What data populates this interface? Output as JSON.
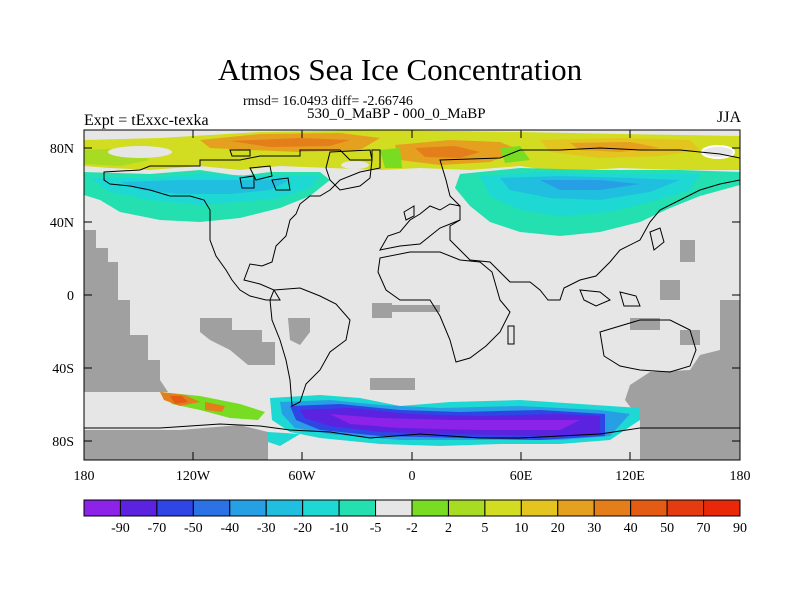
{
  "title": "Atmos Sea Ice Concentration",
  "stats": "rmsd= 16.0493 diff= -2.66746",
  "subtitle": "530_0_MaBP - 000_0_MaBP",
  "experiment": "Expt = tExxc-texka",
  "season": "JJA",
  "map": {
    "lat_labels": [
      "80N",
      "40N",
      "0",
      "40S",
      "80S"
    ],
    "lon_labels": [
      "180",
      "120W",
      "60W",
      "0",
      "60E",
      "120E",
      "180"
    ],
    "land_color": "#e6e6e6",
    "missing_color": "#a0a0a0"
  },
  "colorbar": {
    "labels": [
      "-90",
      "-70",
      "-50",
      "-40",
      "-30",
      "-20",
      "-10",
      "-5",
      "-2",
      "2",
      "5",
      "10",
      "20",
      "30",
      "40",
      "50",
      "70",
      "90"
    ],
    "colors": [
      "#8d22e8",
      "#5b22e0",
      "#2f45e6",
      "#2a72e6",
      "#269fe4",
      "#20bfe0",
      "#1ed8d4",
      "#24e0b0",
      "#e6e6e6",
      "#78dc22",
      "#a8dc22",
      "#d2dc20",
      "#e4c41e",
      "#e4a01e",
      "#e47e1a",
      "#e45c14",
      "#e43c10",
      "#e82808"
    ]
  }
}
